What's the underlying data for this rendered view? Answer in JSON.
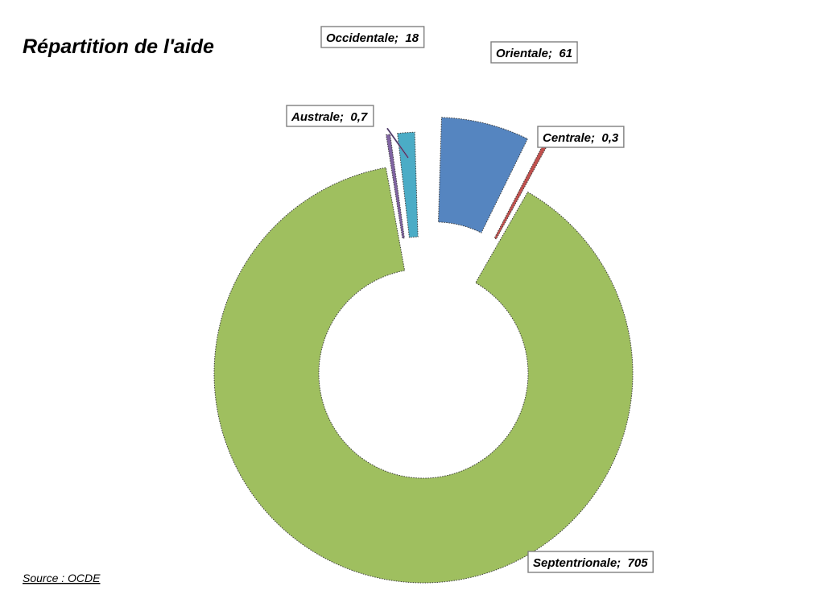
{
  "chart_data": {
    "type": "pie",
    "style": "doughnut-exploded",
    "title": "Répartition de l'aide",
    "categories": [
      "Orientale",
      "Centrale",
      "Septentrionale",
      "Australe",
      "Occidentale"
    ],
    "values": [
      61,
      0.3,
      705,
      0.7,
      18
    ],
    "value_labels": [
      "61",
      "0,3",
      "705",
      "0,7",
      "18"
    ],
    "colors": [
      "#5585c0",
      "#c0504d",
      "#9fbf5f",
      "#8064a2",
      "#4bacc6"
    ],
    "legend": "none",
    "data_labels": "category; value"
  },
  "source": "Source : OCDE"
}
